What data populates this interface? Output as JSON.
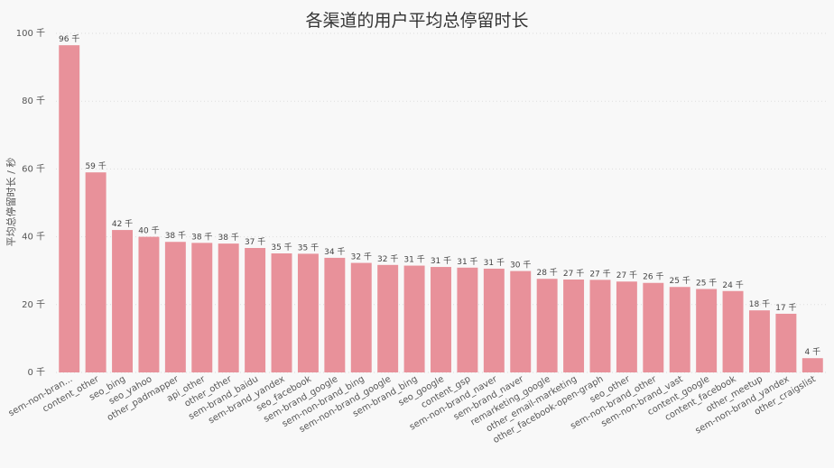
{
  "chart_data": {
    "type": "bar",
    "title": "各渠道的用户平均总停留时长",
    "xlabel": "",
    "ylabel": "平均总停留时长 / 秒",
    "ylim": [
      0,
      100
    ],
    "yticks": [
      "0 千",
      "20 千",
      "40 千",
      "60 千",
      "80 千",
      "100 千"
    ],
    "grid": "horizontal dotted",
    "bar_color": "#e8919a",
    "categories": [
      "sem-non-bran...",
      "content_other",
      "seo_bing",
      "seo_yahoo",
      "other_padmapper",
      "api_other",
      "other_other",
      "sem-brand_baidu",
      "sem-brand_yandex",
      "seo_facebook",
      "sem-brand_google",
      "sem-non-brand_bing",
      "sem-non-brand_google",
      "sem-brand_bing",
      "seo_google",
      "content_gsp",
      "sem-non-brand_naver",
      "sem-brand_naver",
      "remarketing_google",
      "other_email-marketing",
      "other_facebook-open-graph",
      "seo_other",
      "sem-non-brand_other",
      "sem-non-brand_vast",
      "content_google",
      "content_facebook",
      "other_meetup",
      "sem-non-brand_yandex",
      "other_craigslist"
    ],
    "values": [
      96.5,
      59,
      42,
      40,
      38.5,
      38.2,
      38,
      36.7,
      35.1,
      35,
      33.8,
      32.3,
      31.7,
      31.5,
      31.1,
      30.9,
      30.6,
      29.9,
      27.6,
      27.4,
      27.3,
      26.8,
      26.4,
      25.2,
      24.6,
      24,
      18.3,
      17.3,
      4.2
    ],
    "value_labels": [
      "96 千",
      "59 千",
      "42 千",
      "40 千",
      "38 千",
      "38 千",
      "38 千",
      "37 千",
      "35 千",
      "35 千",
      "34 千",
      "32 千",
      "32 千",
      "31 千",
      "31 千",
      "31 千",
      "31 千",
      "30 千",
      "28 千",
      "27 千",
      "27 千",
      "27 千",
      "26 千",
      "25 千",
      "25 千",
      "24 千",
      "18 千",
      "17 千",
      "4 千"
    ]
  }
}
